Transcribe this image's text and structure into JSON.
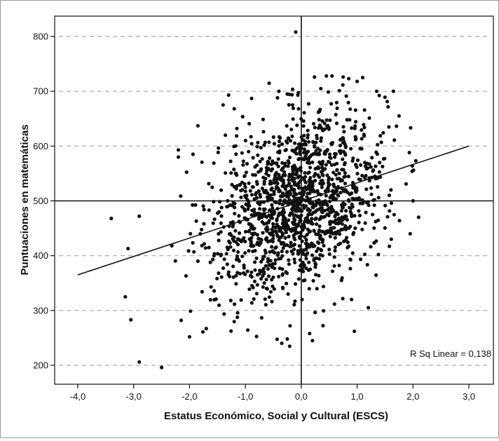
{
  "chart_data": {
    "type": "scatter",
    "xlabel": "Estatus Económico, Social y Cultural (ESCS)",
    "ylabel": "Puntuaciones en matemáticas",
    "xlim": [
      -4.0,
      3.0
    ],
    "ylim": [
      200,
      800
    ],
    "x_ticks": [
      "-4,0",
      "-3,0",
      "-2,0",
      "-1,0",
      "0,0",
      "1,0",
      "2,0",
      "3,0"
    ],
    "y_ticks": [
      "200",
      "300",
      "400",
      "500",
      "600",
      "700",
      "800"
    ],
    "horizontal_gridlines": "dashed",
    "reference_lines": {
      "x": 0.0,
      "y": 500
    },
    "fit_line": {
      "x1": -4.0,
      "y1": 365,
      "x2": 3.0,
      "y2": 600
    },
    "annotation": "R Sq Linear = 0,138",
    "n_points": 1500,
    "point_color": "#111111",
    "points": [
      [
        -3.4,
        468
      ],
      [
        -3.1,
        413
      ],
      [
        -3.05,
        283
      ],
      [
        -3.15,
        325
      ],
      [
        -2.9,
        206
      ],
      [
        -2.9,
        472
      ],
      [
        -2.5,
        196
      ],
      [
        -2.2,
        580
      ],
      [
        -2.2,
        593
      ],
      [
        -2.15,
        282
      ],
      [
        -2.0,
        252
      ],
      [
        -1.85,
        637
      ],
      [
        -1.7,
        267
      ],
      [
        -1.3,
        693
      ],
      [
        -1.2,
        668
      ],
      [
        -1.4,
        675
      ],
      [
        -0.9,
        617
      ],
      [
        -0.4,
        700
      ],
      [
        -0.25,
        695
      ],
      [
        -0.35,
        240
      ],
      [
        -0.25,
        248
      ],
      [
        -0.2,
        272
      ],
      [
        -0.1,
        808
      ],
      [
        0.2,
        245
      ],
      [
        0.15,
        258
      ],
      [
        0.35,
        705
      ],
      [
        0.45,
        728
      ],
      [
        0.55,
        728
      ],
      [
        0.75,
        726
      ],
      [
        0.85,
        723
      ],
      [
        1.0,
        718
      ],
      [
        1.1,
        725
      ],
      [
        1.35,
        700
      ],
      [
        1.65,
        700
      ],
      [
        0.95,
        262
      ],
      [
        1.2,
        305
      ],
      [
        1.75,
        655
      ],
      [
        2.05,
        573
      ],
      [
        2.0,
        500
      ],
      [
        2.1,
        470
      ],
      [
        1.95,
        440
      ],
      [
        0.9,
        320
      ]
    ],
    "bulk_distribution": {
      "x_mean": -0.05,
      "x_sd": 0.78,
      "y_intercept": 498,
      "y_slope": 33.5,
      "y_residual_sd": 78
    }
  }
}
